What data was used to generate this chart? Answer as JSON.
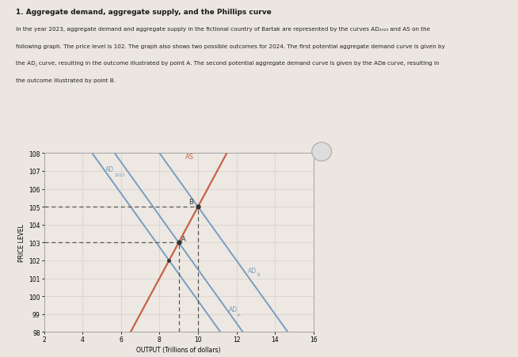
{
  "title": "1. Aggregate demand, aggregate supply, and the Phillips curve",
  "desc1": "In the year 2023, aggregate demand and aggregate supply in the fictional country of Bartak are represented by the curves AD",
  "desc1b": "2023",
  "desc1c": " and AS on the",
  "desc2": "following graph. The price level is 102. The graph also shows two possible outcomes for 2024. The first potential aggregate demand curve is given by",
  "desc3": "the AD",
  "desc3b": "A",
  "desc3c": " curve, resulting in the outcome illustrated by point A. The second potential aggregate demand curve is given by the AD",
  "desc3d": "B",
  "desc3e": " curve, resulting in",
  "desc4": "the outcome illustrated by point B.",
  "xlabel": "OUTPUT (Trillions of dollars)",
  "ylabel": "PRICE LEVEL",
  "xlim": [
    2,
    16
  ],
  "ylim": [
    98,
    108
  ],
  "xticks": [
    2,
    4,
    6,
    8,
    10,
    12,
    14,
    16
  ],
  "yticks": [
    98,
    99,
    100,
    101,
    102,
    103,
    104,
    105,
    106,
    107,
    108
  ],
  "as_color": "#c8614a",
  "ad_color": "#7a9dbf",
  "dashed_color": "#555555",
  "background_color": "#f2ede8",
  "outer_background": "#ebe6e0",
  "chart_bg": "#ede8e2",
  "point_A": [
    9,
    103
  ],
  "point_B": [
    10,
    105
  ],
  "as_a": 2.0,
  "as_b": 85.0,
  "ad_slope": -1.5,
  "b_2023": 114.75,
  "b_A": 116.5,
  "b_B": 120.0
}
